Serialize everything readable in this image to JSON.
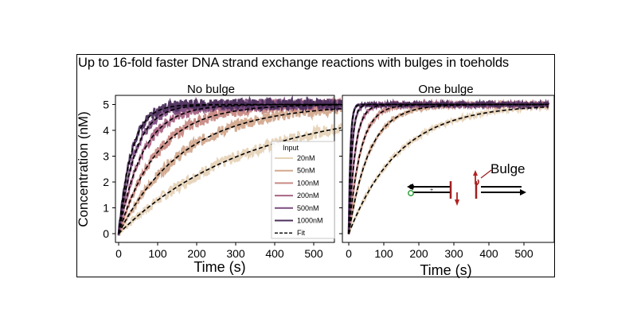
{
  "headline": "Up to 16-fold faster DNA strand exchange reactions with bulges in toeholds",
  "colors": {
    "20nM": "#e6d3b8",
    "50nM": "#d2a98e",
    "100nM": "#c88a84",
    "200nM": "#a86484",
    "500nM": "#7a4c7e",
    "1000nM": "#4c2f5c",
    "fit": "#000000"
  },
  "chart_data": [
    {
      "type": "line",
      "title": "No bulge",
      "xlabel": "Time (s)",
      "ylabel": "Concentration (nM)",
      "xlim": [
        0,
        570
      ],
      "ylim": [
        0,
        5.2
      ],
      "xticks": [
        0,
        100,
        200,
        300,
        400,
        500
      ],
      "yticks": [
        0,
        1,
        2,
        3,
        4,
        5
      ],
      "legend": {
        "title": "Input",
        "position": "lower-right",
        "entries": [
          "20nM",
          "50nM",
          "100nM",
          "200nM",
          "500nM",
          "1000nM",
          "Fit"
        ]
      },
      "series": [
        {
          "name": "20nM",
          "plateau": 5.0,
          "rate_per_s": 0.003
        },
        {
          "name": "50nM",
          "plateau": 5.0,
          "rate_per_s": 0.006
        },
        {
          "name": "100nM",
          "plateau": 5.0,
          "rate_per_s": 0.01
        },
        {
          "name": "200nM",
          "plateau": 5.0,
          "rate_per_s": 0.016
        },
        {
          "name": "500nM",
          "plateau": 5.0,
          "rate_per_s": 0.023
        },
        {
          "name": "1000nM",
          "plateau": 5.0,
          "rate_per_s": 0.03
        }
      ]
    },
    {
      "type": "line",
      "title": "One bulge",
      "xlabel": "Time (s)",
      "ylabel": "",
      "xlim": [
        0,
        570
      ],
      "ylim": [
        0,
        5.2
      ],
      "xticks": [
        0,
        100,
        200,
        300,
        400,
        500
      ],
      "yticks": [
        0,
        1,
        2,
        3,
        4,
        5
      ],
      "annotation": "Bulge",
      "series": [
        {
          "name": "20nM",
          "plateau": 5.0,
          "rate_per_s": 0.007
        },
        {
          "name": "50nM",
          "plateau": 5.0,
          "rate_per_s": 0.017
        },
        {
          "name": "100nM",
          "plateau": 5.0,
          "rate_per_s": 0.03
        },
        {
          "name": "200nM",
          "plateau": 5.0,
          "rate_per_s": 0.055
        },
        {
          "name": "500nM",
          "plateau": 5.0,
          "rate_per_s": 0.11
        },
        {
          "name": "1000nM",
          "plateau": 5.0,
          "rate_per_s": 0.2
        }
      ]
    }
  ]
}
